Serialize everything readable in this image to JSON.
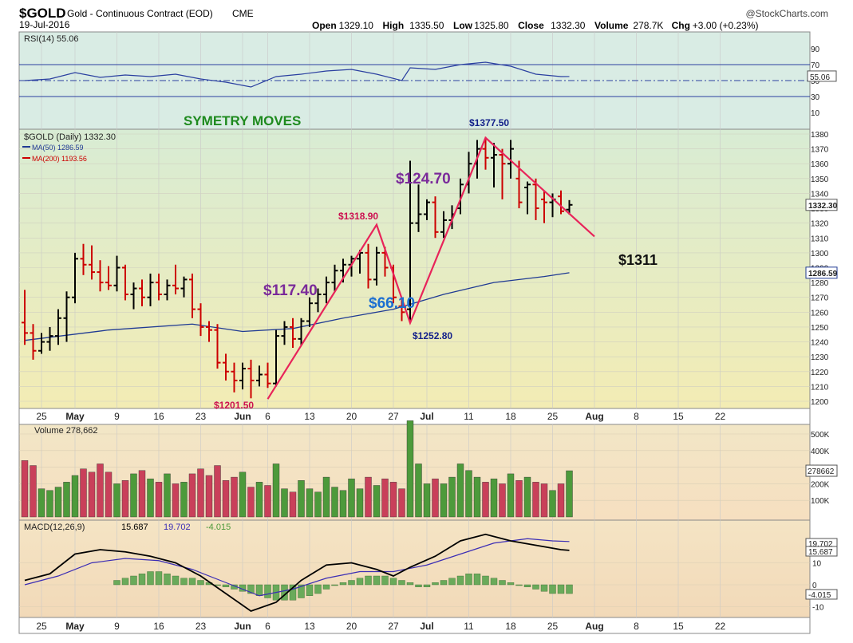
{
  "header": {
    "symbol": "$GOLD",
    "description": "Gold - Continuous Contract (EOD)",
    "exchange": "CME",
    "date": "19-Jul-2016",
    "brand": "@StockCharts.com",
    "quote": [
      {
        "label": "Open",
        "value": "1329.10"
      },
      {
        "label": "High",
        "value": "1335.50"
      },
      {
        "label": "Low",
        "value": "1325.80"
      },
      {
        "label": "Close",
        "value": "1332.30"
      },
      {
        "label": "Volume",
        "value": "278.7K"
      },
      {
        "label": "Chg",
        "value": "+3.00 (+0.23%)"
      }
    ]
  },
  "colors": {
    "up": "#000000",
    "down": "#cc0000",
    "ma50": "#1f3a93",
    "ma200": "#cc0000",
    "annotation_line": "#e8245a",
    "vol_up": "#4d9a3b",
    "vol_down": "#c9405a",
    "macd_line": "#000000",
    "signal_line": "#3b2db5",
    "histogram": "#6aaa5a",
    "rsi_line": "#2a3fa0",
    "symmetry_title": "#1e8a1e",
    "purple": "#7a2a9a",
    "blue_label": "#1b6fd1",
    "navy_label": "#13208a",
    "price_label_red": "#cc1050"
  },
  "xaxis": {
    "ticks": [
      {
        "label": "25",
        "i": 2
      },
      {
        "label": "May",
        "i": 6,
        "bold": true
      },
      {
        "label": "9",
        "i": 11
      },
      {
        "label": "16",
        "i": 16
      },
      {
        "label": "23",
        "i": 21
      },
      {
        "label": "Jun",
        "i": 26,
        "bold": true
      },
      {
        "label": "6",
        "i": 29
      },
      {
        "label": "13",
        "i": 34
      },
      {
        "label": "20",
        "i": 39
      },
      {
        "label": "27",
        "i": 44
      },
      {
        "label": "Jul",
        "i": 48,
        "bold": true
      },
      {
        "label": "11",
        "i": 53
      },
      {
        "label": "18",
        "i": 58
      },
      {
        "label": "25",
        "i": 63
      },
      {
        "label": "Aug",
        "i": 68,
        "bold": true
      },
      {
        "label": "8",
        "i": 73
      },
      {
        "label": "15",
        "i": 78
      },
      {
        "label": "22",
        "i": 83
      }
    ]
  },
  "rsi": {
    "legend": "RSI(14) 55.06",
    "value_label": "55.06",
    "ticks": [
      "90",
      "70",
      "50",
      "30",
      "10"
    ]
  },
  "price_panel": {
    "legend_main": "$GOLD (Daily) 1332.30",
    "legend_ma50": "MA(50) 1286.59",
    "legend_ma200": "MA(200) 1193.56",
    "last_label": "1332.30",
    "ma50_label": "1286.59",
    "ticks": [
      "1380",
      "1370",
      "1360",
      "1350",
      "1340",
      "1330",
      "1320",
      "1310",
      "1300",
      "1290",
      "1280",
      "1270",
      "1260",
      "1250",
      "1240",
      "1230",
      "1220",
      "1210",
      "1200"
    ]
  },
  "annotations": {
    "symmetry": "SYMETRY MOVES",
    "move1": "$117.40",
    "move2": "$66.10",
    "move3": "$124.70",
    "target": "$1311",
    "low1": "$1201.50",
    "high1": "$1318.90",
    "low2": "$1252.80",
    "high2": "$1377.50"
  },
  "volume": {
    "legend": "Volume 278,662",
    "last_label": "278662",
    "ticks": [
      "500K",
      "400K",
      "300K",
      "200K",
      "100K"
    ]
  },
  "macd": {
    "legend_prefix": "MACD(12,26,9)",
    "macd_value": "15.687",
    "signal_value": "19.702",
    "hist_value": "-4.015",
    "signal_label": "19.702",
    "macd_label": "15.687",
    "hist_label": "-4.015",
    "ticks": [
      "10",
      "0",
      "-10"
    ]
  },
  "chart_data": {
    "type": "candlestick",
    "title": "$GOLD Gold - Continuous Contract (EOD) CME",
    "interval": "daily",
    "ylim": [
      1195,
      1390
    ],
    "bars": [
      {
        "o": 1253,
        "h": 1275,
        "l": 1238,
        "c": 1246
      },
      {
        "o": 1246,
        "h": 1252,
        "l": 1228,
        "c": 1234
      },
      {
        "o": 1234,
        "h": 1246,
        "l": 1232,
        "c": 1240
      },
      {
        "o": 1240,
        "h": 1250,
        "l": 1234,
        "c": 1244
      },
      {
        "o": 1244,
        "h": 1262,
        "l": 1238,
        "c": 1256
      },
      {
        "o": 1256,
        "h": 1274,
        "l": 1240,
        "c": 1270
      },
      {
        "o": 1270,
        "h": 1300,
        "l": 1266,
        "c": 1296
      },
      {
        "o": 1296,
        "h": 1306,
        "l": 1285,
        "c": 1292
      },
      {
        "o": 1292,
        "h": 1305,
        "l": 1282,
        "c": 1287
      },
      {
        "o": 1287,
        "h": 1295,
        "l": 1274,
        "c": 1280
      },
      {
        "o": 1280,
        "h": 1291,
        "l": 1275,
        "c": 1278
      },
      {
        "o": 1278,
        "h": 1298,
        "l": 1274,
        "c": 1290
      },
      {
        "o": 1290,
        "h": 1292,
        "l": 1268,
        "c": 1272
      },
      {
        "o": 1272,
        "h": 1280,
        "l": 1262,
        "c": 1276
      },
      {
        "o": 1276,
        "h": 1282,
        "l": 1264,
        "c": 1270
      },
      {
        "o": 1270,
        "h": 1286,
        "l": 1264,
        "c": 1280
      },
      {
        "o": 1280,
        "h": 1286,
        "l": 1268,
        "c": 1272
      },
      {
        "o": 1272,
        "h": 1282,
        "l": 1268,
        "c": 1278
      },
      {
        "o": 1278,
        "h": 1292,
        "l": 1272,
        "c": 1276
      },
      {
        "o": 1276,
        "h": 1284,
        "l": 1270,
        "c": 1282
      },
      {
        "o": 1282,
        "h": 1286,
        "l": 1256,
        "c": 1262
      },
      {
        "o": 1262,
        "h": 1266,
        "l": 1244,
        "c": 1250
      },
      {
        "o": 1250,
        "h": 1254,
        "l": 1240,
        "c": 1248
      },
      {
        "o": 1248,
        "h": 1252,
        "l": 1222,
        "c": 1226
      },
      {
        "o": 1226,
        "h": 1232,
        "l": 1214,
        "c": 1220
      },
      {
        "o": 1220,
        "h": 1226,
        "l": 1206,
        "c": 1214
      },
      {
        "o": 1214,
        "h": 1226,
        "l": 1208,
        "c": 1222
      },
      {
        "o": 1222,
        "h": 1228,
        "l": 1202,
        "c": 1214
      },
      {
        "o": 1214,
        "h": 1224,
        "l": 1210,
        "c": 1218
      },
      {
        "o": 1218,
        "h": 1226,
        "l": 1209,
        "c": 1212
      },
      {
        "o": 1212,
        "h": 1248,
        "l": 1210,
        "c": 1244
      },
      {
        "o": 1244,
        "h": 1254,
        "l": 1238,
        "c": 1250
      },
      {
        "o": 1250,
        "h": 1256,
        "l": 1236,
        "c": 1242
      },
      {
        "o": 1242,
        "h": 1256,
        "l": 1238,
        "c": 1254
      },
      {
        "o": 1254,
        "h": 1270,
        "l": 1250,
        "c": 1266
      },
      {
        "o": 1266,
        "h": 1276,
        "l": 1260,
        "c": 1272
      },
      {
        "o": 1272,
        "h": 1284,
        "l": 1266,
        "c": 1280
      },
      {
        "o": 1280,
        "h": 1292,
        "l": 1274,
        "c": 1288
      },
      {
        "o": 1288,
        "h": 1296,
        "l": 1280,
        "c": 1292
      },
      {
        "o": 1292,
        "h": 1298,
        "l": 1284,
        "c": 1296
      },
      {
        "o": 1296,
        "h": 1302,
        "l": 1286,
        "c": 1300
      },
      {
        "o": 1300,
        "h": 1306,
        "l": 1276,
        "c": 1282
      },
      {
        "o": 1282,
        "h": 1304,
        "l": 1278,
        "c": 1300
      },
      {
        "o": 1300,
        "h": 1304,
        "l": 1284,
        "c": 1290
      },
      {
        "o": 1290,
        "h": 1292,
        "l": 1266,
        "c": 1270
      },
      {
        "o": 1264,
        "h": 1270,
        "l": 1254,
        "c": 1260
      },
      {
        "o": 1262,
        "h": 1362,
        "l": 1254,
        "c": 1320
      },
      {
        "o": 1320,
        "h": 1346,
        "l": 1314,
        "c": 1326
      },
      {
        "o": 1326,
        "h": 1336,
        "l": 1322,
        "c": 1334
      },
      {
        "o": 1334,
        "h": 1338,
        "l": 1310,
        "c": 1314
      },
      {
        "o": 1314,
        "h": 1328,
        "l": 1310,
        "c": 1322
      },
      {
        "o": 1322,
        "h": 1332,
        "l": 1316,
        "c": 1326
      },
      {
        "o": 1330,
        "h": 1350,
        "l": 1326,
        "c": 1346
      },
      {
        "o": 1346,
        "h": 1368,
        "l": 1340,
        "c": 1360
      },
      {
        "o": 1360,
        "h": 1376,
        "l": 1350,
        "c": 1370
      },
      {
        "o": 1370,
        "h": 1378,
        "l": 1356,
        "c": 1364
      },
      {
        "o": 1364,
        "h": 1374,
        "l": 1344,
        "c": 1366
      },
      {
        "o": 1366,
        "h": 1370,
        "l": 1336,
        "c": 1360
      },
      {
        "o": 1360,
        "h": 1376,
        "l": 1350,
        "c": 1370
      },
      {
        "o": 1350,
        "h": 1362,
        "l": 1330,
        "c": 1334
      },
      {
        "o": 1344,
        "h": 1348,
        "l": 1326,
        "c": 1346
      },
      {
        "o": 1346,
        "h": 1350,
        "l": 1322,
        "c": 1330
      },
      {
        "o": 1336,
        "h": 1342,
        "l": 1320,
        "c": 1334
      },
      {
        "o": 1334,
        "h": 1340,
        "l": 1324,
        "c": 1336
      },
      {
        "o": 1338,
        "h": 1342,
        "l": 1326,
        "c": 1328
      },
      {
        "o": 1329.1,
        "h": 1335.5,
        "l": 1325.8,
        "c": 1332.3
      }
    ],
    "ma50": {
      "name": "MA(50)",
      "last": 1286.59,
      "points": [
        [
          0,
          1241
        ],
        [
          10,
          1248
        ],
        [
          20,
          1252
        ],
        [
          26,
          1247
        ],
        [
          32,
          1249
        ],
        [
          38,
          1256
        ],
        [
          44,
          1262
        ],
        [
          50,
          1272
        ],
        [
          56,
          1280
        ],
        [
          62,
          1284
        ],
        [
          65,
          1286.59
        ]
      ]
    },
    "rsi_points": [
      [
        0,
        50
      ],
      [
        3,
        52
      ],
      [
        6,
        60
      ],
      [
        9,
        54
      ],
      [
        12,
        57
      ],
      [
        15,
        55
      ],
      [
        18,
        58
      ],
      [
        21,
        52
      ],
      [
        24,
        48
      ],
      [
        27,
        42
      ],
      [
        30,
        55
      ],
      [
        33,
        58
      ],
      [
        36,
        62
      ],
      [
        39,
        64
      ],
      [
        42,
        58
      ],
      [
        45,
        50
      ],
      [
        46,
        66
      ],
      [
        49,
        64
      ],
      [
        52,
        70
      ],
      [
        55,
        73
      ],
      [
        58,
        68
      ],
      [
        61,
        58
      ],
      [
        64,
        55
      ],
      [
        65,
        55.06
      ]
    ],
    "volume": [
      340000,
      310000,
      170000,
      160000,
      180000,
      210000,
      250000,
      290000,
      270000,
      320000,
      270000,
      200000,
      220000,
      260000,
      280000,
      230000,
      210000,
      260000,
      200000,
      210000,
      260000,
      290000,
      250000,
      310000,
      220000,
      240000,
      270000,
      180000,
      210000,
      190000,
      320000,
      170000,
      150000,
      220000,
      170000,
      150000,
      240000,
      180000,
      160000,
      230000,
      170000,
      240000,
      190000,
      230000,
      210000,
      170000,
      580000,
      320000,
      200000,
      230000,
      200000,
      240000,
      320000,
      280000,
      240000,
      210000,
      230000,
      200000,
      260000,
      220000,
      240000,
      210000,
      200000,
      160000,
      200000,
      278662
    ],
    "macd_points": [
      [
        0,
        2
      ],
      [
        3,
        5
      ],
      [
        6,
        14
      ],
      [
        9,
        16
      ],
      [
        12,
        15
      ],
      [
        15,
        13
      ],
      [
        18,
        10
      ],
      [
        21,
        4
      ],
      [
        24,
        -4
      ],
      [
        27,
        -12
      ],
      [
        30,
        -8
      ],
      [
        33,
        2
      ],
      [
        36,
        9
      ],
      [
        39,
        10
      ],
      [
        42,
        7
      ],
      [
        44,
        4
      ],
      [
        46,
        8
      ],
      [
        49,
        13
      ],
      [
        52,
        20
      ],
      [
        55,
        23
      ],
      [
        58,
        20
      ],
      [
        61,
        18
      ],
      [
        64,
        16
      ],
      [
        65,
        15.687
      ]
    ],
    "signal_points": [
      [
        0,
        0
      ],
      [
        4,
        4
      ],
      [
        8,
        10
      ],
      [
        12,
        12
      ],
      [
        16,
        11
      ],
      [
        20,
        7
      ],
      [
        24,
        1
      ],
      [
        28,
        -5
      ],
      [
        32,
        -2
      ],
      [
        36,
        3
      ],
      [
        40,
        6
      ],
      [
        44,
        6
      ],
      [
        48,
        9
      ],
      [
        52,
        14
      ],
      [
        56,
        19
      ],
      [
        60,
        21
      ],
      [
        63,
        20
      ],
      [
        65,
        19.702
      ]
    ],
    "histogram": [
      2,
      3,
      4,
      5,
      6,
      6,
      5,
      4,
      3,
      3,
      2,
      1,
      0,
      -1,
      -2,
      -3,
      -4,
      -5,
      -6,
      -7,
      -7,
      -7,
      -6,
      -5,
      -4,
      -2,
      0,
      1,
      2,
      3,
      4,
      4,
      4,
      3,
      2,
      1,
      -1,
      -1,
      1,
      2,
      3,
      4,
      5,
      5,
      4,
      3,
      2,
      1,
      0,
      -1,
      -2,
      -3,
      -4,
      -4,
      -4.015
    ]
  }
}
